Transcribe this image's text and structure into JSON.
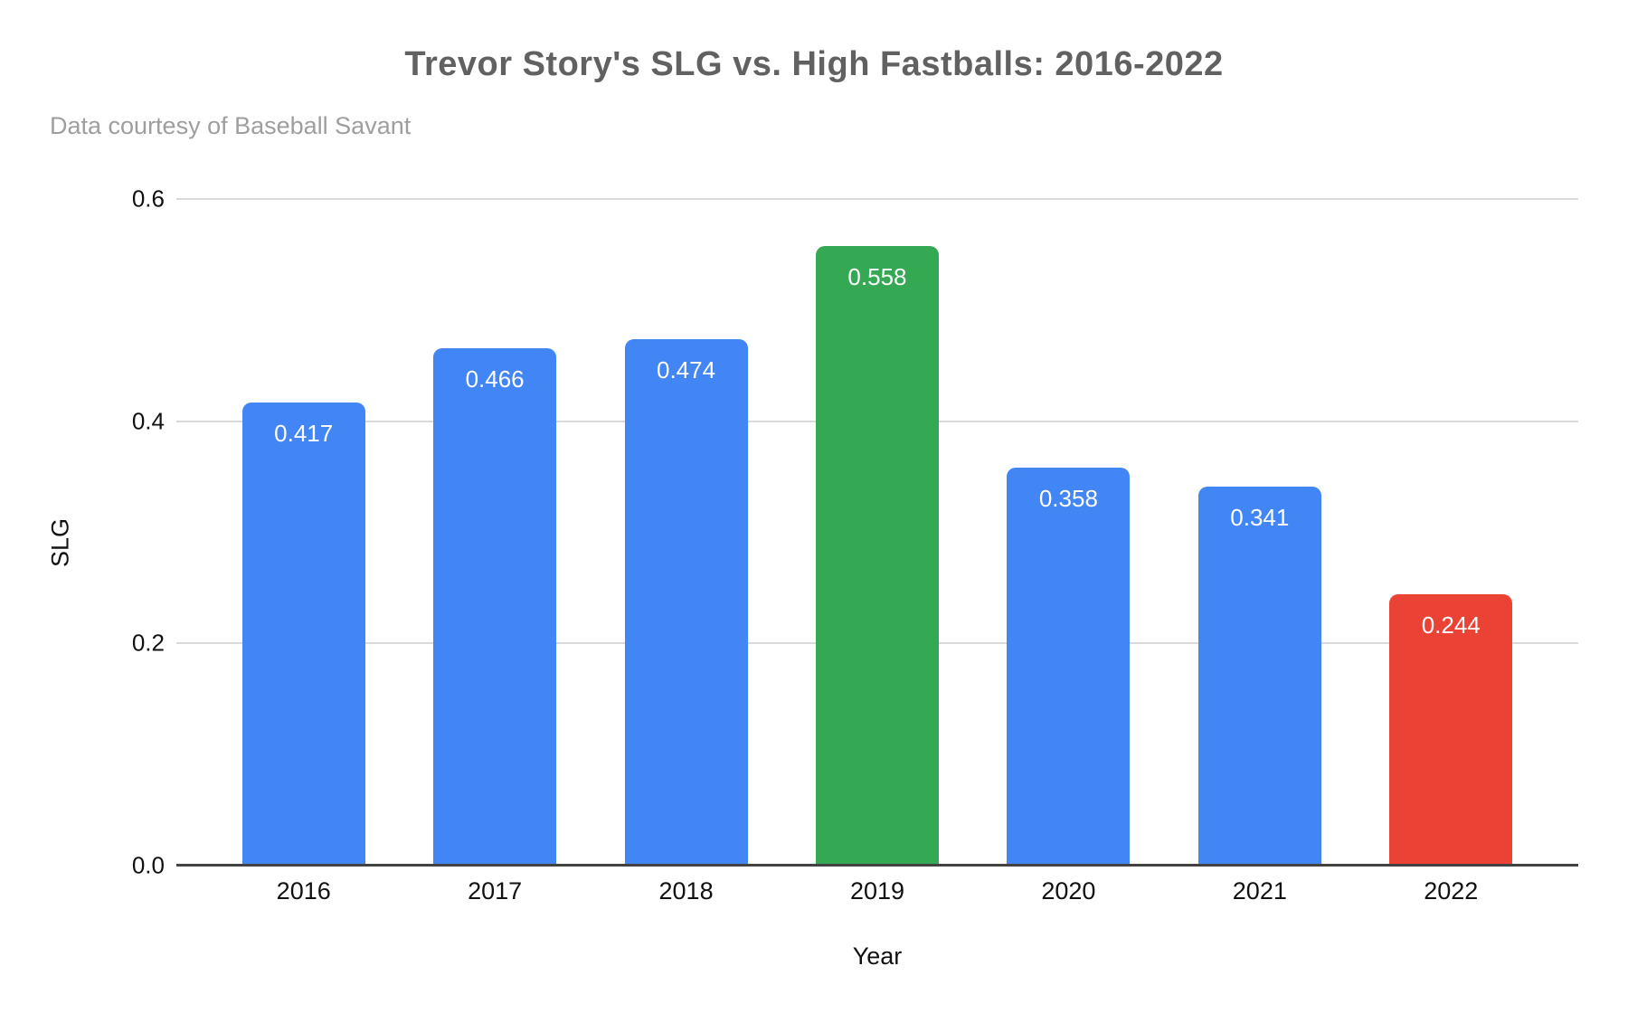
{
  "chart_data": {
    "type": "bar",
    "title": "Trevor Story's SLG vs. High Fastballs: 2016-2022",
    "subtitle": "Data courtesy of Baseball Savant",
    "xlabel": "Year",
    "ylabel": "SLG",
    "categories": [
      "2016",
      "2017",
      "2018",
      "2019",
      "2020",
      "2021",
      "2022"
    ],
    "values": [
      0.417,
      0.466,
      0.474,
      0.558,
      0.358,
      0.341,
      0.244
    ],
    "value_labels": [
      "0.417",
      "0.466",
      "0.474",
      "0.558",
      "0.358",
      "0.341",
      "0.244"
    ],
    "bar_colors": [
      "#4285F4",
      "#4285F4",
      "#4285F4",
      "#34A853",
      "#4285F4",
      "#4285F4",
      "#EA4335"
    ],
    "y_ticks": [
      "0.0",
      "0.2",
      "0.4",
      "0.6"
    ],
    "y_tick_values": [
      0,
      0.2,
      0.4,
      0.6
    ],
    "ylim": [
      0,
      0.6
    ],
    "grid": true,
    "legend": "none",
    "colors": {
      "series_default": "#4285F4",
      "highlight_peak": "#34A853",
      "highlight_low": "#EA4335",
      "gridline": "#d9d9d9",
      "axis_line": "#424242",
      "title_text": "#616161",
      "subtitle_text": "#9e9e9e",
      "tick_text": "#111111",
      "bar_label_text": "#ffffff",
      "background": "#ffffff"
    }
  }
}
